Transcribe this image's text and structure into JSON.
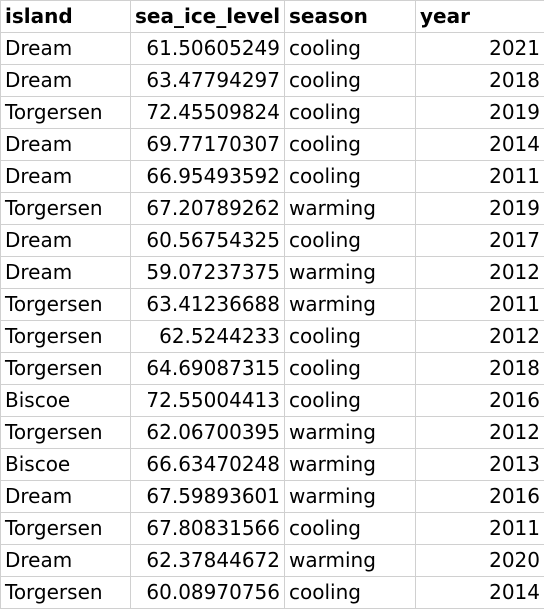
{
  "columns": {
    "island": "island",
    "sea_ice_level": "sea_ice_level",
    "season": "season",
    "year": "year"
  },
  "rows": [
    {
      "island": "Dream",
      "sea_ice_level": "61.50605249",
      "season": "cooling",
      "year": "2021"
    },
    {
      "island": "Dream",
      "sea_ice_level": "63.47794297",
      "season": "cooling",
      "year": "2018"
    },
    {
      "island": "Torgersen",
      "sea_ice_level": "72.45509824",
      "season": "cooling",
      "year": "2019"
    },
    {
      "island": "Dream",
      "sea_ice_level": "69.77170307",
      "season": "cooling",
      "year": "2014"
    },
    {
      "island": "Dream",
      "sea_ice_level": "66.95493592",
      "season": "cooling",
      "year": "2011"
    },
    {
      "island": "Torgersen",
      "sea_ice_level": "67.20789262",
      "season": "warming",
      "year": "2019"
    },
    {
      "island": "Dream",
      "sea_ice_level": "60.56754325",
      "season": "cooling",
      "year": "2017"
    },
    {
      "island": "Dream",
      "sea_ice_level": "59.07237375",
      "season": "warming",
      "year": "2012"
    },
    {
      "island": "Torgersen",
      "sea_ice_level": "63.41236688",
      "season": "warming",
      "year": "2011"
    },
    {
      "island": "Torgersen",
      "sea_ice_level": "62.5244233",
      "season": "cooling",
      "year": "2012"
    },
    {
      "island": "Torgersen",
      "sea_ice_level": "64.69087315",
      "season": "cooling",
      "year": "2018"
    },
    {
      "island": "Biscoe",
      "sea_ice_level": "72.55004413",
      "season": "cooling",
      "year": "2016"
    },
    {
      "island": "Torgersen",
      "sea_ice_level": "62.06700395",
      "season": "warming",
      "year": "2012"
    },
    {
      "island": "Biscoe",
      "sea_ice_level": "66.63470248",
      "season": "warming",
      "year": "2013"
    },
    {
      "island": "Dream",
      "sea_ice_level": "67.59893601",
      "season": "warming",
      "year": "2016"
    },
    {
      "island": "Torgersen",
      "sea_ice_level": "67.80831566",
      "season": "cooling",
      "year": "2011"
    },
    {
      "island": "Dream",
      "sea_ice_level": "62.37844672",
      "season": "warming",
      "year": "2020"
    },
    {
      "island": "Torgersen",
      "sea_ice_level": "60.08970756",
      "season": "cooling",
      "year": "2014"
    }
  ]
}
